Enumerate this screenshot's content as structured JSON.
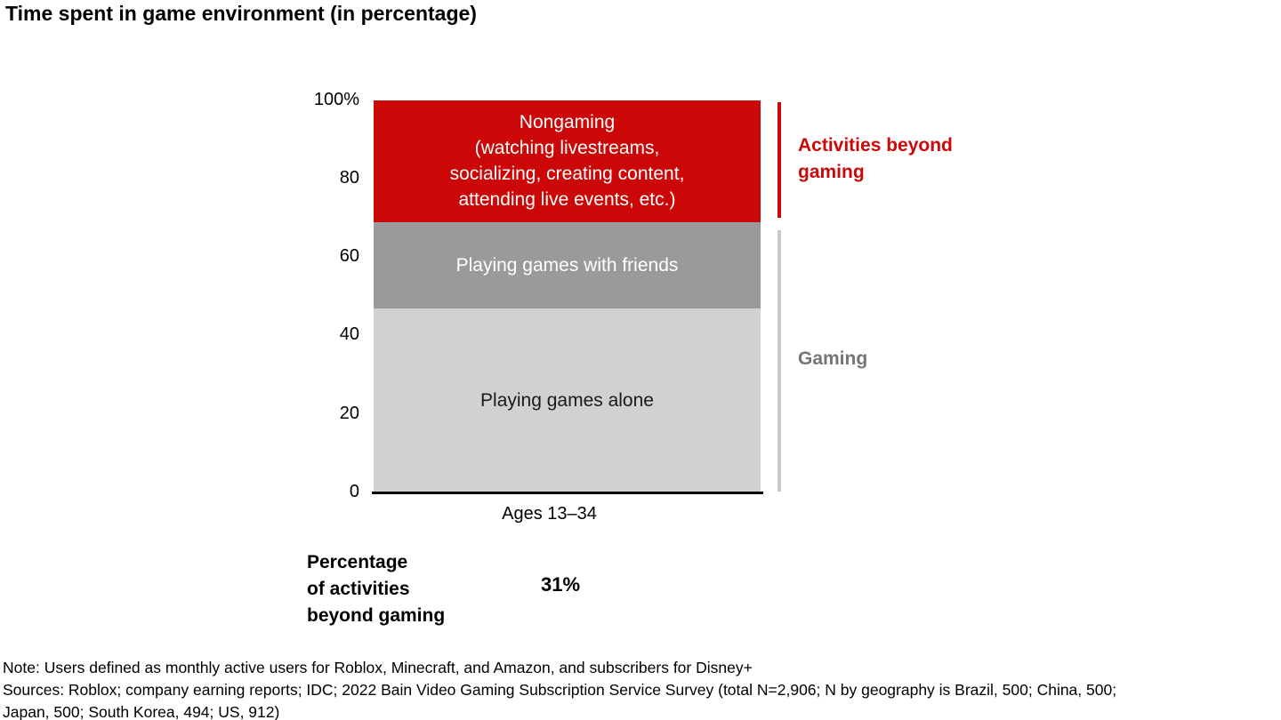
{
  "page": {
    "title": "Time spent in game environment (in percentage)"
  },
  "chart_data": {
    "type": "bar",
    "stacked": true,
    "orientation": "vertical",
    "categories": [
      "Ages 13–34"
    ],
    "series": [
      {
        "name": "Playing games alone",
        "values": [
          47
        ],
        "color": "#d1d1d1"
      },
      {
        "name": "Playing games with friends",
        "values": [
          22
        ],
        "color": "#9a9a9a"
      },
      {
        "name": "Nongaming (watching livestreams, socializing, creating content, attending live events, etc.)",
        "values": [
          31
        ],
        "color": "#cb0707"
      }
    ],
    "stack_order": "bottom to top",
    "title": "Time spent in game environment (in percentage)",
    "xlabel": "",
    "ylabel": "",
    "ylim": [
      0,
      100
    ],
    "yticks": [
      "100%",
      "80",
      "60",
      "40",
      "20",
      "0"
    ],
    "grid": false,
    "legend": "none",
    "annotations": [
      {
        "text": "Activities beyond gaming",
        "color": "#cb0707",
        "refers_to": "Nongaming segment"
      },
      {
        "text": "Gaming",
        "color": "#757575",
        "refers_to": "Playing games alone + Playing games with friends segments"
      },
      {
        "text": "Percentage of activities beyond gaming: 31%"
      }
    ]
  },
  "axis": {
    "ticks": [
      "100%",
      "80",
      "60",
      "40",
      "20",
      "0"
    ]
  },
  "bar": {
    "x_label": "Ages 13–34",
    "segments": [
      {
        "label": "Nongaming\n(watching livestreams,\nsocializing, creating content,\nattending live events, etc.)",
        "value": 31,
        "color": "#cb0707",
        "text_color": "#ffffff"
      },
      {
        "label": "Playing games with friends",
        "value": 22,
        "color": "#9a9a9a",
        "text_color": "#ffffff"
      },
      {
        "label": "Playing games alone",
        "value": 47,
        "color": "#d1d1d1",
        "text_color": "#1a1a1a"
      }
    ]
  },
  "annotations": {
    "beyond": "Activities beyond\ngaming",
    "gaming": "Gaming"
  },
  "stat": {
    "label": "Percentage\nof activities\nbeyond gaming",
    "value": "31%"
  },
  "footnotes": {
    "note": "Note: Users defined as monthly active users for Roblox, Minecraft, and Amazon, and subscribers for Disney+",
    "sources": "Sources: Roblox; company earning reports; IDC; 2022 Bain Video Gaming Subscription Service Survey (total N=2,906; N by geography is Brazil, 500; China, 500;\nJapan, 500; South Korea, 494; US, 912)"
  }
}
